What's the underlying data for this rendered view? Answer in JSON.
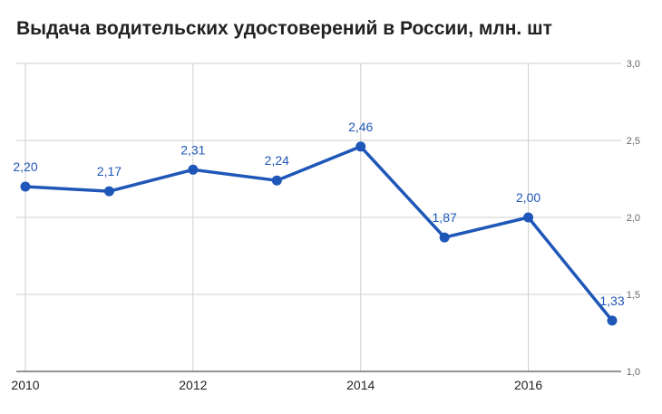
{
  "chart_data": {
    "type": "line",
    "title": "Выдача водительских удостоверений в России, млн. шт",
    "x": [
      2010,
      2011,
      2012,
      2013,
      2014,
      2015,
      2016,
      2017
    ],
    "x_tick_labels": [
      "2010",
      "2012",
      "2014",
      "2016"
    ],
    "x_tick_values": [
      2010,
      2012,
      2014,
      2016
    ],
    "xlim": [
      2010,
      2017
    ],
    "series": [
      {
        "values": [
          2.2,
          2.17,
          2.31,
          2.24,
          2.46,
          1.87,
          2.0,
          1.33
        ],
        "data_labels": [
          "2,20",
          "2,17",
          "2,31",
          "2,24",
          "2,46",
          "1,87",
          "2,00",
          "1,33"
        ],
        "color": "#1f57b8"
      }
    ],
    "ylim": [
      1.0,
      3.0
    ],
    "y_tick_values": [
      1.0,
      1.5,
      2.0,
      2.5,
      3.0
    ],
    "y_tick_labels": [
      "1,0",
      "1,5",
      "2,0",
      "2,5",
      "3,0"
    ],
    "y_axis_side": "right",
    "grid": true
  }
}
